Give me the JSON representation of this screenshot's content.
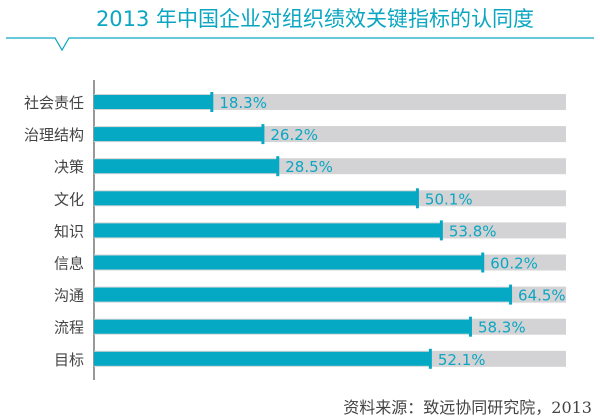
{
  "chart_data": {
    "type": "bar",
    "orientation": "horizontal",
    "title": "2013 年中国企业对组织绩效关键指标的认同度",
    "categories": [
      "社会责任",
      "治理结构",
      "决策",
      "文化",
      "知识",
      "信息",
      "沟通",
      "流程",
      "目标"
    ],
    "values": [
      18.3,
      26.2,
      28.5,
      50.1,
      53.8,
      60.2,
      64.5,
      58.3,
      52.1
    ],
    "data_labels": [
      "18.3%",
      "26.2%",
      "28.5%",
      "50.1%",
      "53.8%",
      "60.2%",
      "64.5%",
      "58.3%",
      "52.1%"
    ],
    "xlabel": "",
    "ylabel": "",
    "xlim": [
      0,
      73
    ],
    "grid": false,
    "source": "资料来源：致远协同研究院，2013",
    "colors": {
      "bar": "#05a9c4",
      "track": "#d3d3d5",
      "label": "#0aa6c2",
      "axis": "#555555"
    }
  }
}
